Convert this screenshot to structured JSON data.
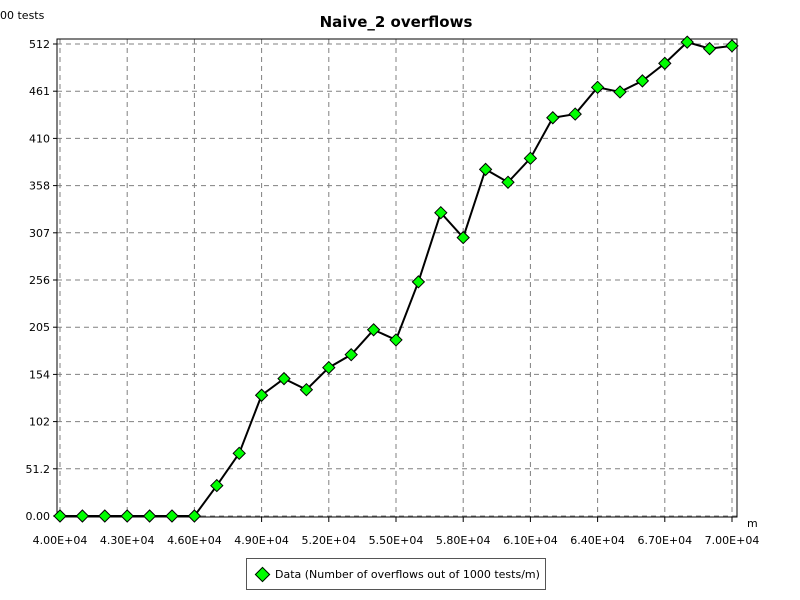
{
  "chart_data": {
    "type": "line",
    "title": "Naive_2 overflows",
    "ylabel": "00 tests",
    "xlabel": "m",
    "xlim": [
      40000,
      70000
    ],
    "ylim": [
      0,
      512
    ],
    "x_ticks": [
      "4.00E+04",
      "4.30E+04",
      "4.60E+04",
      "4.90E+04",
      "5.20E+04",
      "5.50E+04",
      "5.80E+04",
      "6.10E+04",
      "6.40E+04",
      "6.70E+04",
      "7.00E+04"
    ],
    "x_tick_values": [
      40000,
      43000,
      46000,
      49000,
      52000,
      55000,
      58000,
      61000,
      64000,
      67000,
      70000
    ],
    "y_ticks": [
      "0.00",
      "51.2",
      "102",
      "154",
      "205",
      "256",
      "307",
      "358",
      "410",
      "461",
      "512"
    ],
    "y_tick_values": [
      0,
      51.2,
      102.4,
      153.6,
      204.8,
      256,
      307.2,
      358.4,
      409.6,
      460.8,
      512
    ],
    "grid": true,
    "legend_position": "bottom",
    "series": [
      {
        "name": "Data (Number of overflows out of 1000 tests/m)",
        "color": "#00ff00",
        "marker": "diamond",
        "x": [
          40000,
          41000,
          42000,
          43000,
          44000,
          45000,
          46000,
          47000,
          48000,
          49000,
          50000,
          51000,
          52000,
          53000,
          54000,
          55000,
          56000,
          57000,
          58000,
          59000,
          60000,
          61000,
          62000,
          63000,
          64000,
          65000,
          66000,
          67000,
          68000,
          69000,
          70000
        ],
        "y": [
          0,
          0,
          0,
          0,
          0,
          0,
          0,
          33,
          68,
          131,
          149,
          137,
          161,
          175,
          202,
          191,
          254,
          329,
          302,
          376,
          362,
          388,
          432,
          436,
          465,
          460,
          472,
          491,
          514,
          507,
          510
        ]
      }
    ]
  }
}
